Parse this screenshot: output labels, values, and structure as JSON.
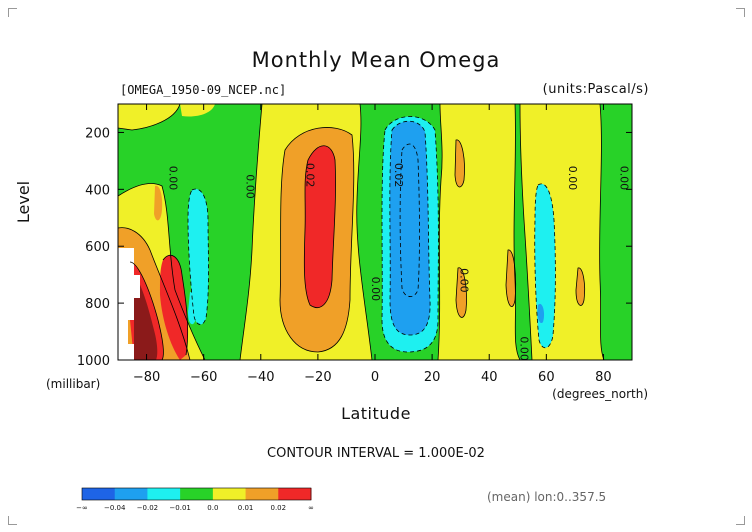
{
  "title": "Monthly Mean Omega",
  "file_label": "[OMEGA_1950-09_NCEP.nc]",
  "units_label": "(units:Pascal/s)",
  "y_axis_unit": "(millibar)",
  "x_axis_unit": "(degrees_north)",
  "contour_interval": "CONTOUR INTERVAL = 1.000E-02",
  "mean_info": "(mean) lon:0..357.5",
  "chart_data": {
    "type": "heatmap",
    "title": "Monthly Mean Omega",
    "xlabel": "Latitude",
    "ylabel": "Level",
    "xlim": [
      -90,
      90
    ],
    "ylim": [
      1000,
      100
    ],
    "x_ticks": [
      -80,
      -60,
      -40,
      -20,
      0,
      20,
      40,
      60,
      80
    ],
    "y_ticks": [
      200,
      400,
      600,
      800,
      1000
    ],
    "contour_labels": [
      {
        "text": "0.00",
        "x": -72,
        "y": 360
      },
      {
        "text": "0.00",
        "x": -45,
        "y": 390
      },
      {
        "text": "0.02",
        "x": -24,
        "y": 350
      },
      {
        "text": "0.02",
        "x": 7,
        "y": 350
      },
      {
        "text": "0.00",
        "x": -1,
        "y": 750
      },
      {
        "text": "0.00",
        "x": 30,
        "y": 720
      },
      {
        "text": "0.00",
        "x": 51,
        "y": 960
      },
      {
        "text": "0.00",
        "x": 68,
        "y": 360
      },
      {
        "text": "0.00",
        "x": 86,
        "y": 360
      }
    ],
    "colorbar": {
      "labels": [
        "-∞",
        "-0.04",
        "-0.02",
        "-0.01",
        "0.0",
        "0.01",
        "0.02",
        "∞"
      ],
      "colors": [
        "#1e64e6",
        "#1ea0f0",
        "#1ef0f0",
        "#28d228",
        "#f0f028",
        "#f0a028",
        "#f02828"
      ]
    },
    "note": ""
  }
}
